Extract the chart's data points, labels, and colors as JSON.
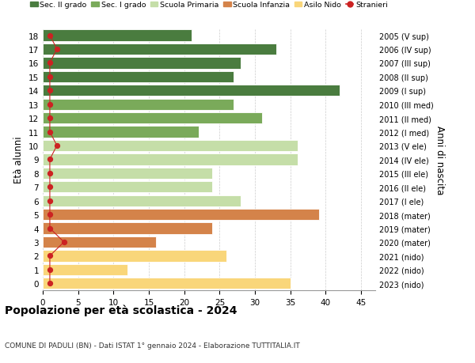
{
  "ages": [
    0,
    1,
    2,
    3,
    4,
    5,
    6,
    7,
    8,
    9,
    10,
    11,
    12,
    13,
    14,
    15,
    16,
    17,
    18
  ],
  "values": [
    35,
    12,
    26,
    16,
    24,
    39,
    28,
    24,
    24,
    36,
    36,
    22,
    31,
    27,
    42,
    27,
    28,
    33,
    21
  ],
  "stranieri": [
    1,
    1,
    1,
    3,
    1,
    1,
    1,
    1,
    1,
    1,
    2,
    1,
    1,
    1,
    1,
    1,
    1,
    2,
    1
  ],
  "right_labels": [
    "2023 (nido)",
    "2022 (nido)",
    "2021 (nido)",
    "2020 (mater)",
    "2019 (mater)",
    "2018 (mater)",
    "2017 (I ele)",
    "2016 (II ele)",
    "2015 (III ele)",
    "2014 (IV ele)",
    "2013 (V ele)",
    "2012 (I med)",
    "2011 (II med)",
    "2010 (III med)",
    "2009 (I sup)",
    "2008 (II sup)",
    "2007 (III sup)",
    "2006 (IV sup)",
    "2005 (V sup)"
  ],
  "bar_colors": [
    "#f9d67a",
    "#f9d67a",
    "#f9d67a",
    "#d4834a",
    "#d4834a",
    "#d4834a",
    "#c5dea8",
    "#c5dea8",
    "#c5dea8",
    "#c5dea8",
    "#c5dea8",
    "#7aaa5a",
    "#7aaa5a",
    "#7aaa5a",
    "#4a7c3f",
    "#4a7c3f",
    "#4a7c3f",
    "#4a7c3f",
    "#4a7c3f"
  ],
  "legend_labels": [
    "Sec. II grado",
    "Sec. I grado",
    "Scuola Primaria",
    "Scuola Infanzia",
    "Asilo Nido",
    "Stranieri"
  ],
  "legend_colors": [
    "#4a7c3f",
    "#7aaa5a",
    "#c5dea8",
    "#d4834a",
    "#f9d67a",
    "#cc2222"
  ],
  "title": "Popolazione per età scolastica - 2024",
  "subtitle": "COMUNE DI PADULI (BN) - Dati ISTAT 1° gennaio 2024 - Elaborazione TUTTITALIA.IT",
  "ylabel": "Età alunni",
  "right_ylabel": "Anni di nascita",
  "xlim": [
    0,
    47
  ],
  "xticks": [
    0,
    5,
    10,
    15,
    20,
    25,
    30,
    35,
    40,
    45
  ],
  "colors_stranieri": "#cc2222"
}
